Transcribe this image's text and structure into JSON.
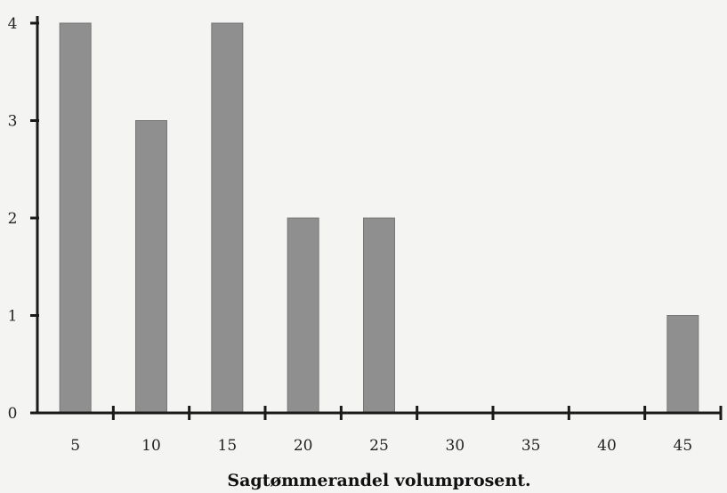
{
  "chart_data": {
    "type": "bar",
    "categories": [
      "5",
      "10",
      "15",
      "20",
      "25",
      "30",
      "35",
      "40",
      "45"
    ],
    "values": [
      4,
      3,
      4,
      2,
      2,
      0,
      0,
      0,
      1
    ],
    "title": "",
    "xlabel": "Sagtømmerandel volumprosent.",
    "ylabel": "",
    "ylim": [
      0,
      4
    ],
    "yticks": [
      "0",
      "1",
      "2",
      "3",
      "4"
    ],
    "grid": false,
    "colors": {
      "bar": "#8f8f8f",
      "axis": "#1a1a1a"
    }
  }
}
